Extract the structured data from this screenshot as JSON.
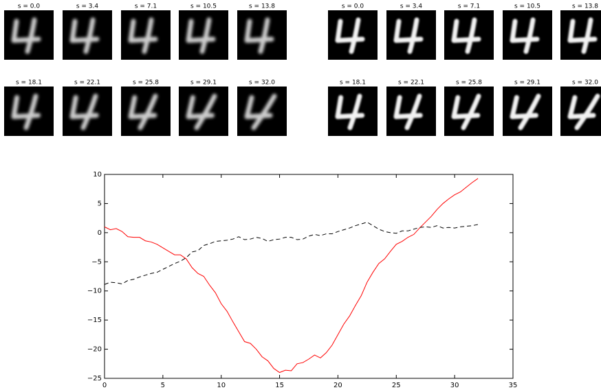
{
  "panels": {
    "left": [
      "s = 0.0",
      "s = 3.4",
      "s = 7.1",
      "s = 10.5",
      "s = 13.8",
      "s = 18.1",
      "s = 22.1",
      "s = 25.8",
      "s = 29.1",
      "s = 32.0"
    ],
    "right": [
      "s = 0.0",
      "s = 3.4",
      "s = 7.1",
      "s = 10.5",
      "s = 13.8",
      "s = 18.1",
      "s = 22.1",
      "s = 25.8",
      "s = 29.1",
      "s = 32.0"
    ]
  },
  "chart_data": {
    "type": "line",
    "x": [
      0,
      0.5,
      1,
      1.5,
      2,
      2.5,
      3,
      3.5,
      4,
      4.5,
      5,
      5.5,
      6,
      6.5,
      7,
      7.5,
      8,
      8.5,
      9,
      9.5,
      10,
      10.5,
      11,
      11.5,
      12,
      12.5,
      13,
      13.5,
      14,
      14.5,
      15,
      15.5,
      16,
      16.5,
      17,
      17.5,
      18,
      18.5,
      19,
      19.5,
      20,
      20.5,
      21,
      21.5,
      22,
      22.5,
      23,
      23.5,
      24,
      24.5,
      25,
      25.5,
      26,
      26.5,
      27,
      27.5,
      28,
      28.5,
      29,
      29.5,
      30,
      30.5,
      31,
      31.5,
      32
    ],
    "series": [
      {
        "color": "#ff0000",
        "style": "solid",
        "values": [
          1.0,
          0.5,
          0.7,
          0.2,
          -0.7,
          -0.8,
          -0.8,
          -1.4,
          -1.6,
          -2.0,
          -2.6,
          -3.2,
          -3.8,
          -3.8,
          -4.5,
          -6.0,
          -7.0,
          -7.5,
          -9.0,
          -10.3,
          -12.2,
          -13.5,
          -15.3,
          -17.0,
          -18.7,
          -19.0,
          -20.0,
          -21.3,
          -22.0,
          -23.3,
          -24.0,
          -23.6,
          -23.7,
          -22.5,
          -22.3,
          -21.7,
          -21.0,
          -21.5,
          -20.6,
          -19.3,
          -17.5,
          -15.7,
          -14.3,
          -12.5,
          -10.8,
          -8.5,
          -6.8,
          -5.3,
          -4.5,
          -3.2,
          -2.0,
          -1.5,
          -0.8,
          -0.3,
          0.8,
          1.8,
          2.8,
          4.0,
          5.0,
          5.8,
          6.5,
          7.0,
          7.8,
          8.6,
          9.3
        ]
      },
      {
        "color": "#000000",
        "style": "dashed",
        "values": [
          -8.9,
          -8.5,
          -8.6,
          -8.8,
          -8.2,
          -8.0,
          -7.6,
          -7.3,
          -7.0,
          -6.8,
          -6.3,
          -5.8,
          -5.3,
          -4.9,
          -4.3,
          -3.3,
          -3.1,
          -2.2,
          -1.9,
          -1.5,
          -1.4,
          -1.3,
          -1.1,
          -0.7,
          -1.2,
          -1.1,
          -0.8,
          -1.0,
          -1.5,
          -1.2,
          -1.1,
          -0.8,
          -0.8,
          -1.2,
          -1.1,
          -0.6,
          -0.3,
          -0.5,
          -0.2,
          -0.2,
          0.2,
          0.5,
          0.8,
          1.2,
          1.5,
          1.8,
          1.2,
          0.6,
          0.2,
          0.0,
          -0.1,
          0.3,
          0.3,
          0.6,
          0.9,
          1.0,
          0.9,
          1.2,
          0.8,
          0.9,
          0.8,
          1.0,
          1.1,
          1.2,
          1.4
        ]
      }
    ],
    "xlim": [
      0,
      35
    ],
    "xticks": [
      0,
      5,
      10,
      15,
      20,
      25,
      30,
      35
    ],
    "ylim": [
      -25,
      10
    ],
    "yticks": [
      {
        "value": -25,
        "label": "−25"
      },
      {
        "value": -20,
        "label": "−20"
      },
      {
        "value": -15,
        "label": "−15"
      },
      {
        "value": -10,
        "label": "−10"
      },
      {
        "value": -5,
        "label": "−5"
      },
      0,
      5,
      10
    ]
  }
}
